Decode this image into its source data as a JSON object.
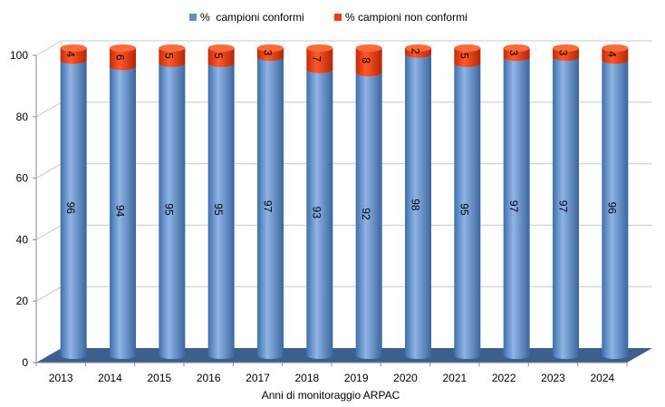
{
  "chart_data": {
    "type": "bar",
    "stacked": true,
    "three_d": true,
    "categories": [
      "2013",
      "2014",
      "2015",
      "2016",
      "2017",
      "2018",
      "2019",
      "2020",
      "2021",
      "2022",
      "2023",
      "2024"
    ],
    "series": [
      {
        "name": "%  campioni conformi",
        "color": "#5b8fd0",
        "values": [
          96,
          94,
          95,
          95,
          97,
          93,
          92,
          98,
          95,
          97,
          97,
          96
        ]
      },
      {
        "name": "% campioni non conformi",
        "color": "#f03a10",
        "values": [
          4,
          6,
          5,
          5,
          3,
          7,
          8,
          2,
          5,
          3,
          3,
          4
        ]
      }
    ],
    "xlabel": "Anni di monitoraggio ARPAC",
    "ylabel": "",
    "ylim": [
      0,
      100
    ],
    "yticks": [
      0,
      20,
      40,
      60,
      80,
      100
    ],
    "grid": true,
    "legend": "top-center",
    "data_labels": "rotated-vertical"
  }
}
